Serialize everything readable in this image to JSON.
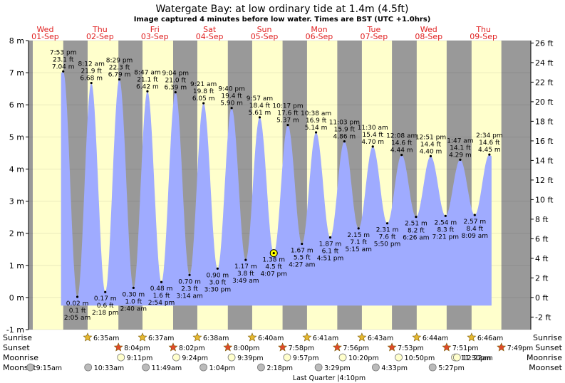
{
  "header": {
    "title": "Watergate Bay: at low  ordinary tide at 1.4m (4.5ft)",
    "subtitle": "Image captured 4 minutes before low water. Times are BST (UTC +1.0hrs)"
  },
  "chart_data": {
    "type": "area",
    "title": "Watergate Bay: at low  ordinary tide at 1.4m (4.5ft)",
    "y_left_unit": "m",
    "y_right_unit": "ft",
    "ylim_m": [
      -1,
      8
    ],
    "y_left_ticks": [
      "-1 m",
      "0 m",
      "1 m",
      "2 m",
      "3 m",
      "4 m",
      "5 m",
      "6 m",
      "7 m",
      "8 m"
    ],
    "y_right_ticks": [
      "-2 ft",
      "0 ft",
      "2 ft",
      "4 ft",
      "6 ft",
      "8 ft",
      "10 ft",
      "12 ft",
      "14 ft",
      "16 ft",
      "18 ft",
      "20 ft",
      "22 ft",
      "24 ft",
      "26 ft"
    ],
    "days": [
      {
        "dow": "Wed",
        "date": "01-Sep"
      },
      {
        "dow": "Thu",
        "date": "02-Sep"
      },
      {
        "dow": "Fri",
        "date": "03-Sep"
      },
      {
        "dow": "Sat",
        "date": "04-Sep"
      },
      {
        "dow": "Sun",
        "date": "05-Sep"
      },
      {
        "dow": "Mon",
        "date": "06-Sep"
      },
      {
        "dow": "Tue",
        "date": "07-Sep"
      },
      {
        "dow": "Wed",
        "date": "08-Sep"
      },
      {
        "dow": "Thu",
        "date": "09-Sep"
      }
    ],
    "grid": true,
    "tides": [
      {
        "time": "7:53 pm",
        "ft": "23.1 ft",
        "m": 7.04,
        "m_label": "7.04 m",
        "type": "high",
        "day": 0
      },
      {
        "time": "2:05 am",
        "ft": "0.1 ft",
        "m": 0.02,
        "m_label": "0.02 m",
        "type": "low",
        "day": 1
      },
      {
        "time": "8:12 am",
        "ft": "21.9 ft",
        "m": 6.68,
        "m_label": "6.68 m",
        "type": "high",
        "day": 1
      },
      {
        "time": "2:18 pm",
        "ft": "0.6 ft",
        "m": 0.17,
        "m_label": "0.17 m",
        "type": "low",
        "day": 1
      },
      {
        "time": "8:29 pm",
        "ft": "22.3 ft",
        "m": 6.79,
        "m_label": "6.79 m",
        "type": "high",
        "day": 1
      },
      {
        "time": "2:40 am",
        "ft": "1.0 ft",
        "m": 0.3,
        "m_label": "0.30 m",
        "type": "low",
        "day": 2
      },
      {
        "time": "8:47 am",
        "ft": "21.1 ft",
        "m": 6.42,
        "m_label": "6.42 m",
        "type": "high",
        "day": 2
      },
      {
        "time": "2:54 pm",
        "ft": "1.6 ft",
        "m": 0.48,
        "m_label": "0.48 m",
        "type": "low",
        "day": 2
      },
      {
        "time": "9:04 pm",
        "ft": "21.0 ft",
        "m": 6.39,
        "m_label": "6.39 m",
        "type": "high",
        "day": 2
      },
      {
        "time": "3:14 am",
        "ft": "2.3 ft",
        "m": 0.7,
        "m_label": "0.70 m",
        "type": "low",
        "day": 3
      },
      {
        "time": "9:21 am",
        "ft": "19.8 ft",
        "m": 6.05,
        "m_label": "6.05 m",
        "type": "high",
        "day": 3
      },
      {
        "time": "3:30 pm",
        "ft": "3.0 ft",
        "m": 0.9,
        "m_label": "0.90 m",
        "type": "low",
        "day": 3
      },
      {
        "time": "9:40 pm",
        "ft": "19.4 ft",
        "m": 5.9,
        "m_label": "5.90 m",
        "type": "high",
        "day": 3
      },
      {
        "time": "3:49 am",
        "ft": "3.8 ft",
        "m": 1.17,
        "m_label": "1.17 m",
        "type": "low",
        "day": 4
      },
      {
        "time": "9:57 am",
        "ft": "18.4 ft",
        "m": 5.61,
        "m_label": "5.61 m",
        "type": "high",
        "day": 4
      },
      {
        "time": "4:07 pm",
        "ft": "4.5 ft",
        "m": 1.38,
        "m_label": "1.38 m",
        "type": "low",
        "day": 4,
        "current": true
      },
      {
        "time": "10:17 pm",
        "ft": "17.6 ft",
        "m": 5.37,
        "m_label": "5.37 m",
        "type": "high",
        "day": 4
      },
      {
        "time": "4:27 am",
        "ft": "5.5 ft",
        "m": 1.67,
        "m_label": "1.67 m",
        "type": "low",
        "day": 5
      },
      {
        "time": "10:38 am",
        "ft": "16.9 ft",
        "m": 5.14,
        "m_label": "5.14 m",
        "type": "high",
        "day": 5
      },
      {
        "time": "4:51 pm",
        "ft": "6.1 ft",
        "m": 1.87,
        "m_label": "1.87 m",
        "type": "low",
        "day": 5
      },
      {
        "time": "11:03 pm",
        "ft": "15.9 ft",
        "m": 4.86,
        "m_label": "4.86 m",
        "type": "high",
        "day": 5
      },
      {
        "time": "5:15 am",
        "ft": "7.1 ft",
        "m": 2.15,
        "m_label": "2.15 m",
        "type": "low",
        "day": 6
      },
      {
        "time": "11:30 am",
        "ft": "15.4 ft",
        "m": 4.7,
        "m_label": "4.70 m",
        "type": "high",
        "day": 6
      },
      {
        "time": "5:50 pm",
        "ft": "7.6 ft",
        "m": 2.31,
        "m_label": "2.31 m",
        "type": "low",
        "day": 6
      },
      {
        "time": "12:08 am",
        "ft": "14.6 ft",
        "m": 4.44,
        "m_label": "4.44 m",
        "type": "high",
        "day": 7
      },
      {
        "time": "6:26 am",
        "ft": "8.2 ft",
        "m": 2.51,
        "m_label": "2.51 m",
        "type": "low",
        "day": 7
      },
      {
        "time": "12:51 pm",
        "ft": "14.4 ft",
        "m": 4.4,
        "m_label": "4.40 m",
        "type": "high",
        "day": 7
      },
      {
        "time": "7:21 pm",
        "ft": "8.3 ft",
        "m": 2.54,
        "m_label": "2.54 m",
        "type": "low",
        "day": 7
      },
      {
        "time": "1:47 am",
        "ft": "14.1 ft",
        "m": 4.29,
        "m_label": "4.29 m",
        "type": "high",
        "day": 8
      },
      {
        "time": "8:09 am",
        "ft": "8.4 ft",
        "m": 2.57,
        "m_label": "2.57 m",
        "type": "low",
        "day": 8
      },
      {
        "time": "2:34 pm",
        "ft": "14.6 ft",
        "m": 4.45,
        "m_label": "4.45 m",
        "type": "high",
        "day": 8
      }
    ]
  },
  "sun_moon": {
    "row_labels": {
      "sunrise": "Sunrise",
      "sunset": "Sunset",
      "moonrise": "Moonrise",
      "moonset": "Moonset"
    },
    "sunrise": [
      {
        "day": 1,
        "time": "6:35am"
      },
      {
        "day": 2,
        "time": "6:37am"
      },
      {
        "day": 3,
        "time": "6:38am"
      },
      {
        "day": 4,
        "time": "6:40am"
      },
      {
        "day": 5,
        "time": "6:41am"
      },
      {
        "day": 6,
        "time": "6:43am"
      },
      {
        "day": 7,
        "time": "6:44am"
      },
      {
        "day": 8,
        "time": "6:46am"
      }
    ],
    "sunset": [
      {
        "day": 1,
        "time": "8:04pm"
      },
      {
        "day": 2,
        "time": "8:02pm"
      },
      {
        "day": 3,
        "time": "8:00pm"
      },
      {
        "day": 4,
        "time": "7:58pm"
      },
      {
        "day": 5,
        "time": "7:56pm"
      },
      {
        "day": 6,
        "time": "7:53pm"
      },
      {
        "day": 7,
        "time": "7:51pm"
      },
      {
        "day": 8,
        "time": "7:49pm"
      }
    ],
    "moonrise": [
      {
        "day": 1,
        "time": "9:11pm"
      },
      {
        "day": 2,
        "time": "9:24pm"
      },
      {
        "day": 3,
        "time": "9:39pm"
      },
      {
        "day": 4,
        "time": "9:57pm"
      },
      {
        "day": 5,
        "time": "10:20pm"
      },
      {
        "day": 6,
        "time": "10:50pm"
      },
      {
        "day": 7,
        "time": "11:30pm"
      },
      {
        "day": 8,
        "time": "12:22am"
      }
    ],
    "moonset": [
      {
        "day": 0,
        "time": "9:15am"
      },
      {
        "day": 1,
        "time": "10:33am"
      },
      {
        "day": 2,
        "time": "11:49am"
      },
      {
        "day": 3,
        "time": "1:04pm"
      },
      {
        "day": 4,
        "time": "2:18pm"
      },
      {
        "day": 5,
        "time": "3:29pm"
      },
      {
        "day": 6,
        "time": "4:33pm"
      },
      {
        "day": 7,
        "time": "5:27pm"
      }
    ],
    "moon_phase": "Last Quarter |4:10pm"
  },
  "colors": {
    "night": "#999999",
    "day": "#ffffcc",
    "water": "#9fabff",
    "day_label": "#e02020",
    "sun_icon": "#e6b830",
    "sunset_icon": "#e04a2a",
    "moonrise_icon": "#ffffcc",
    "moonset_icon": "#bbbbbb",
    "current_marker": "#ffff00"
  }
}
